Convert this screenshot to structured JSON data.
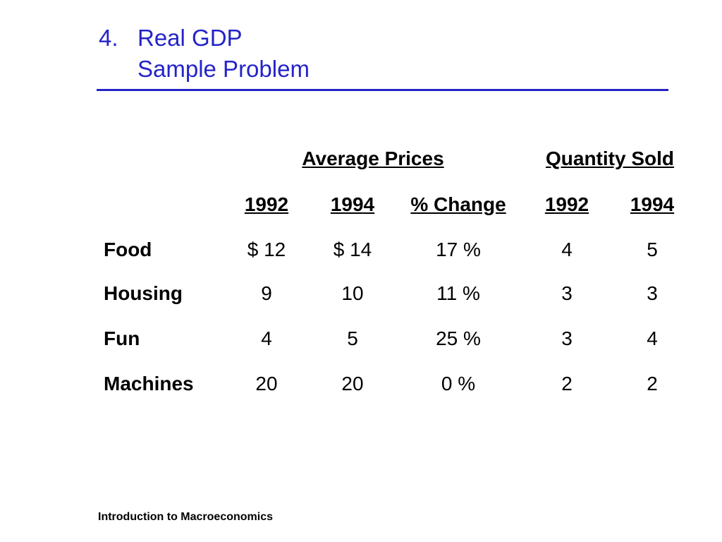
{
  "slide": {
    "title_number": "4.",
    "title_line1": "Real GDP",
    "title_line2": "Sample Problem",
    "footer": "Introduction to Macroeconomics",
    "accent_color": "#2424c8"
  },
  "table": {
    "group_headers": [
      "Average Prices",
      "Quantity Sold"
    ],
    "column_headers": [
      "1992",
      "1994",
      "% Change",
      "1992",
      "1994"
    ],
    "rows": [
      {
        "label": "Food",
        "cells": [
          "$ 12",
          "$ 14",
          "17 %",
          "4",
          "5"
        ]
      },
      {
        "label": "Housing",
        "cells": [
          "9",
          "10",
          "11 %",
          "3",
          "3"
        ]
      },
      {
        "label": "Fun",
        "cells": [
          "4",
          "5",
          "25 %",
          "3",
          "4"
        ]
      },
      {
        "label": "Machines",
        "cells": [
          "20",
          "20",
          "0 %",
          "2",
          "2"
        ]
      }
    ]
  }
}
